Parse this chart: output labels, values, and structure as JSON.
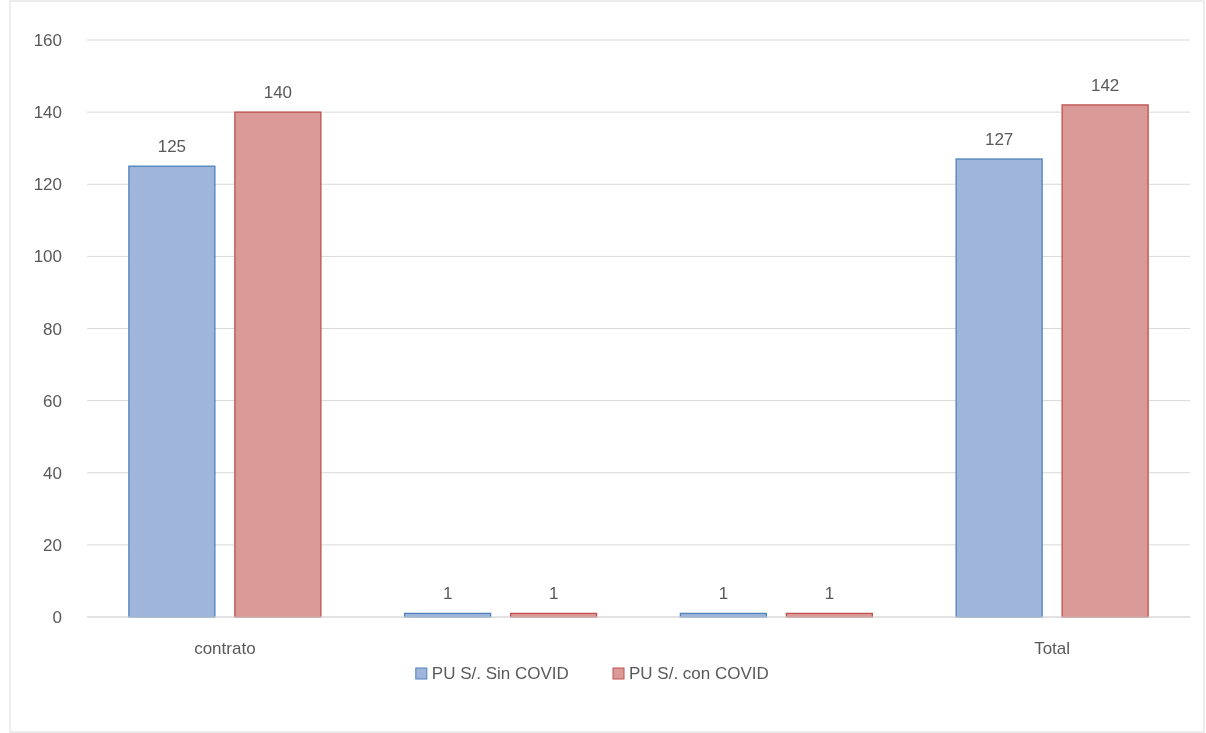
{
  "chart_data": {
    "type": "bar",
    "categories": [
      "contrato",
      null,
      null,
      "Total"
    ],
    "series": [
      {
        "name": "PU S/. Sin COVID",
        "color": "#9fb5da",
        "values": [
          125,
          1,
          1,
          127
        ]
      },
      {
        "name": "PU S/. con COVID",
        "color": "#d99a98",
        "values": [
          140,
          1,
          1,
          142
        ]
      }
    ],
    "ylim": [
      0,
      160
    ],
    "yticks": [
      0,
      20,
      40,
      60,
      80,
      100,
      120,
      140,
      160
    ],
    "grid": "y",
    "legend": "bottom",
    "data_labels": true
  }
}
